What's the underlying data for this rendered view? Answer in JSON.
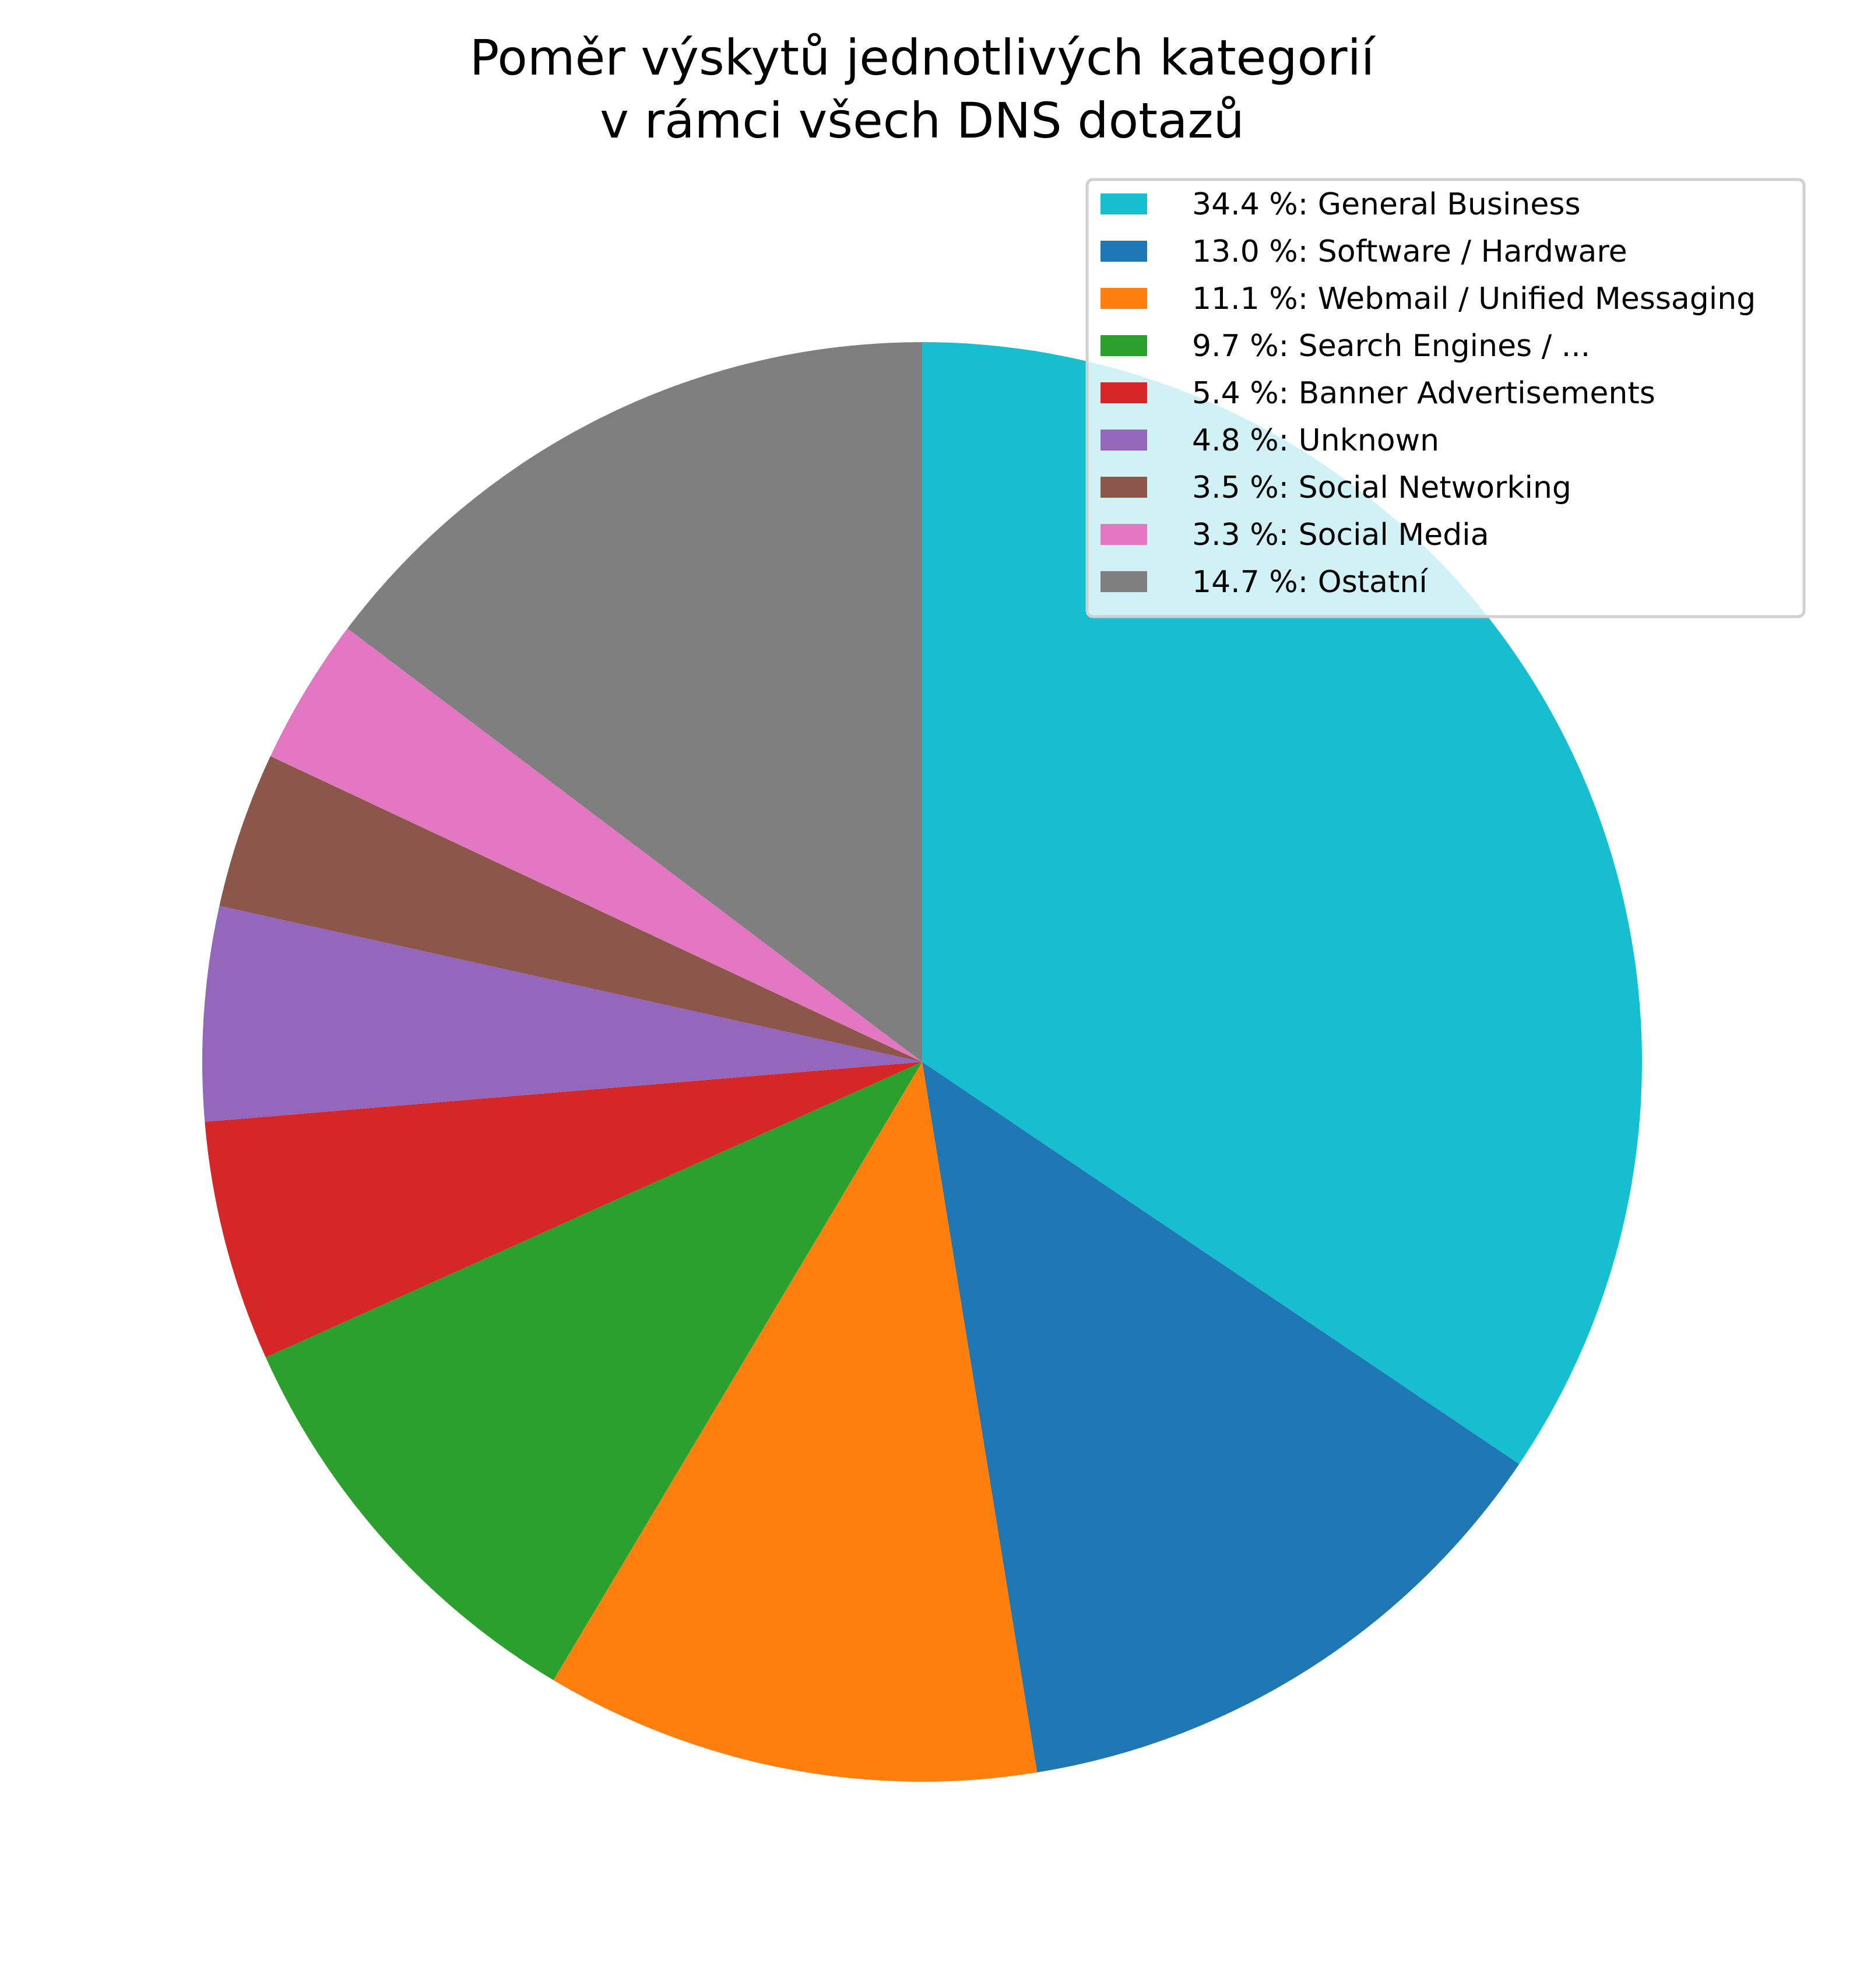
{
  "chart_data": {
    "type": "pie",
    "title_lines": [
      "Poměr výskytů jednotlivých kategorií",
      "v rámci všech DNS dotazů"
    ],
    "legend_placement": "top-right",
    "start_angle_deg": 90,
    "direction": "clockwise",
    "slices": [
      {
        "label": "34.4 %: General Business",
        "category": "General Business",
        "value": 34.4,
        "color": "#17becf"
      },
      {
        "label": "13.0 %: Software / Hardware",
        "category": "Software / Hardware",
        "value": 13.0,
        "color": "#1f77b4"
      },
      {
        "label": "11.1 %: Webmail / Unified Messaging",
        "category": "Webmail / Unified Messaging",
        "value": 11.1,
        "color": "#ff7f0e"
      },
      {
        "label": "9.7 %: Search Engines / ...",
        "category": "Search Engines / ...",
        "value": 9.7,
        "color": "#2ca02c"
      },
      {
        "label": "5.4 %: Banner Advertisements",
        "category": "Banner Advertisements",
        "value": 5.4,
        "color": "#d62728"
      },
      {
        "label": "4.8 %: Unknown",
        "category": "Unknown",
        "value": 4.8,
        "color": "#9467bd"
      },
      {
        "label": "3.5 %: Social Networking",
        "category": "Social Networking",
        "value": 3.5,
        "color": "#8c564b"
      },
      {
        "label": "3.3 %: Social Media",
        "category": "Social Media",
        "value": 3.3,
        "color": "#e377c2"
      },
      {
        "label": "14.7 %: Ostatní",
        "category": "Ostatní",
        "value": 14.7,
        "color": "#7f7f7f"
      }
    ]
  }
}
